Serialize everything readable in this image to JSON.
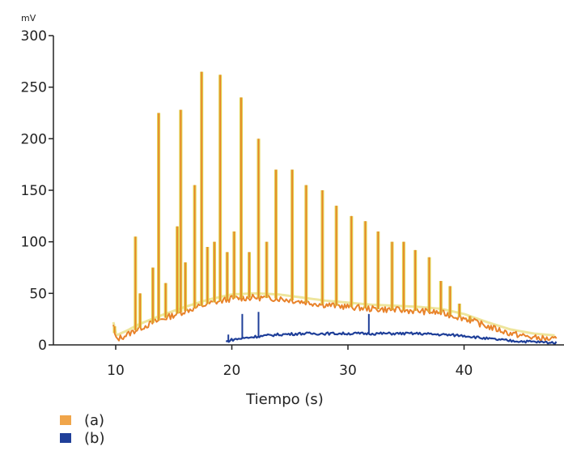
{
  "chart_data": {
    "type": "line",
    "title": "",
    "xlabel": "Tiempo (s)",
    "ylabel": "mV",
    "xlim": [
      5,
      48
    ],
    "ylim": [
      0,
      300
    ],
    "xticks": [
      10,
      20,
      30,
      40
    ],
    "yticks": [
      0,
      50,
      100,
      150,
      200,
      250,
      300
    ],
    "grid": false,
    "legend": "bottom-left",
    "series": [
      {
        "name": "(a)",
        "color": "#e8822a",
        "highlight_color": "#e0cf4a",
        "baseline": [
          [
            9.8,
            18
          ],
          [
            10,
            5
          ],
          [
            11,
            10
          ],
          [
            12,
            16
          ],
          [
            14,
            25
          ],
          [
            16,
            33
          ],
          [
            18,
            40
          ],
          [
            20,
            45
          ],
          [
            22,
            46
          ],
          [
            24,
            45
          ],
          [
            26,
            42
          ],
          [
            28,
            39
          ],
          [
            30,
            37
          ],
          [
            32,
            35
          ],
          [
            34,
            34
          ],
          [
            36,
            33
          ],
          [
            38,
            31
          ],
          [
            40,
            26
          ],
          [
            42,
            18
          ],
          [
            44,
            11
          ],
          [
            46,
            7
          ],
          [
            48,
            5
          ]
        ],
        "peaks": [
          [
            9.9,
            18
          ],
          [
            11.7,
            105
          ],
          [
            12.1,
            50
          ],
          [
            13.2,
            75
          ],
          [
            13.7,
            225
          ],
          [
            14.3,
            60
          ],
          [
            15.3,
            115
          ],
          [
            15.6,
            228
          ],
          [
            16.0,
            80
          ],
          [
            16.8,
            155
          ],
          [
            17.4,
            265
          ],
          [
            17.9,
            95
          ],
          [
            18.5,
            100
          ],
          [
            19.0,
            262
          ],
          [
            19.6,
            90
          ],
          [
            20.2,
            110
          ],
          [
            20.8,
            240
          ],
          [
            21.5,
            90
          ],
          [
            22.3,
            200
          ],
          [
            23.0,
            100
          ],
          [
            23.8,
            170
          ],
          [
            25.2,
            170
          ],
          [
            26.4,
            155
          ],
          [
            27.8,
            150
          ],
          [
            29.0,
            135
          ],
          [
            30.3,
            125
          ],
          [
            31.5,
            120
          ],
          [
            32.6,
            110
          ],
          [
            33.8,
            100
          ],
          [
            34.8,
            100
          ],
          [
            35.8,
            92
          ],
          [
            37.0,
            85
          ],
          [
            38.0,
            62
          ],
          [
            38.8,
            57
          ],
          [
            39.6,
            40
          ],
          [
            40.5,
            28
          ],
          [
            41.5,
            20
          ]
        ]
      },
      {
        "name": "(b)",
        "color": "#1f3f99",
        "baseline": [
          [
            19.5,
            3
          ],
          [
            20,
            5
          ],
          [
            22,
            8
          ],
          [
            24,
            10
          ],
          [
            26,
            11
          ],
          [
            28,
            11
          ],
          [
            30,
            11
          ],
          [
            32,
            11
          ],
          [
            34,
            11
          ],
          [
            36,
            11
          ],
          [
            38,
            10
          ],
          [
            40,
            9
          ],
          [
            42,
            6
          ],
          [
            44,
            4
          ],
          [
            46,
            3
          ],
          [
            48,
            2
          ]
        ],
        "peaks": [
          [
            19.7,
            10
          ],
          [
            20.9,
            30
          ],
          [
            22.3,
            32
          ],
          [
            31.8,
            30
          ]
        ]
      }
    ]
  }
}
